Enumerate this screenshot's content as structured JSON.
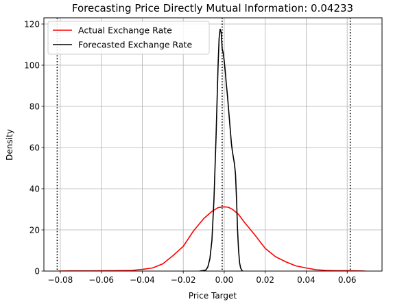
{
  "chart_data": {
    "type": "line",
    "title": "Forecasting Price Directly Mutual Information: 0.04233",
    "xlabel": "Price Target",
    "ylabel": "Density",
    "xlim": [
      -0.088,
      0.077
    ],
    "ylim": [
      0,
      123
    ],
    "x_ticks": [
      -0.08,
      -0.06,
      -0.04,
      -0.02,
      0.0,
      0.02,
      0.04,
      0.06
    ],
    "x_tick_labels": [
      "−0.08",
      "−0.06",
      "−0.04",
      "−0.02",
      "0.00",
      "0.02",
      "0.04",
      "0.06"
    ],
    "y_ticks": [
      0,
      20,
      40,
      60,
      80,
      100,
      120
    ],
    "y_tick_labels": [
      "0",
      "20",
      "40",
      "60",
      "80",
      "100",
      "120"
    ],
    "grid": true,
    "legend_position": "top-left",
    "series": [
      {
        "name": "Actual Exchange Rate",
        "color": "#ff0000",
        "x": [
          -0.081,
          -0.075,
          -0.065,
          -0.055,
          -0.045,
          -0.04,
          -0.035,
          -0.03,
          -0.025,
          -0.02,
          -0.015,
          -0.01,
          -0.006,
          -0.003,
          0.0,
          0.002,
          0.004,
          0.007,
          0.01,
          0.015,
          0.02,
          0.025,
          0.03,
          0.035,
          0.04,
          0.045,
          0.05,
          0.055,
          0.06,
          0.065,
          0.069
        ],
        "values": [
          0.0,
          0.1,
          0.1,
          0.2,
          0.3,
          0.8,
          1.5,
          3.5,
          7.5,
          12.0,
          19.5,
          25.5,
          29.0,
          30.8,
          31.2,
          31.0,
          30.0,
          27.5,
          23.5,
          17.5,
          11.0,
          7.0,
          4.5,
          2.5,
          1.5,
          0.6,
          0.3,
          0.2,
          0.2,
          0.1,
          0.0
        ]
      },
      {
        "name": "Forecasted Exchange Rate",
        "color": "#000000",
        "x": [
          -0.012,
          -0.009,
          -0.008,
          -0.007,
          -0.006,
          -0.005,
          -0.004,
          -0.003,
          -0.0025,
          -0.002,
          -0.0015,
          -0.001,
          -0.0005,
          0.0,
          0.0005,
          0.001,
          0.0015,
          0.002,
          0.0025,
          0.003,
          0.0035,
          0.004,
          0.0045,
          0.005,
          0.0055,
          0.006,
          0.0065,
          0.007,
          0.0075,
          0.008,
          0.0085,
          0.009
        ],
        "values": [
          0.0,
          0.5,
          2.0,
          6.0,
          15.0,
          35.0,
          65.0,
          100.0,
          113.0,
          117.5,
          116.0,
          108.0,
          106.0,
          102.0,
          97.0,
          91.0,
          86.0,
          80.0,
          74.0,
          68.0,
          62.0,
          58.0,
          55.0,
          52.0,
          47.0,
          35.0,
          20.0,
          10.0,
          4.0,
          1.5,
          0.5,
          0.0
        ]
      }
    ],
    "vlines": [
      {
        "x": -0.0815,
        "style": "dotted",
        "color": "#000000"
      },
      {
        "x": -0.001,
        "style": "dotted",
        "color": "#000000"
      },
      {
        "x": 0.0615,
        "style": "dotted",
        "color": "#000000"
      }
    ]
  }
}
